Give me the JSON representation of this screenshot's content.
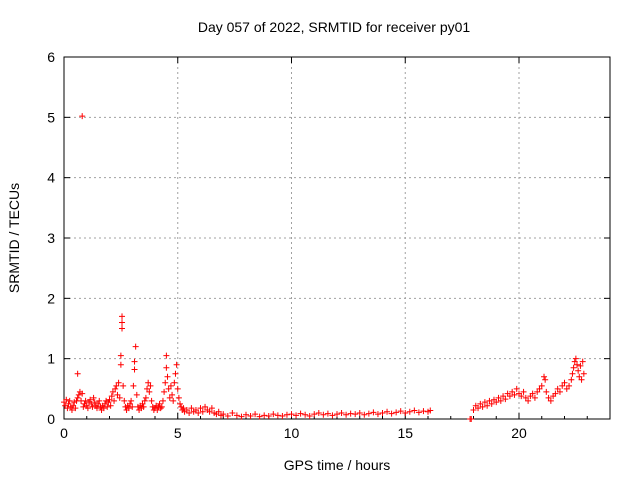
{
  "chart_data": {
    "type": "scatter",
    "title": "Day 057 of 2022, SRMTID for receiver py01",
    "xlabel": "GPS time / hours",
    "ylabel": "SRMTID / TECUs",
    "xlim": [
      0,
      24
    ],
    "ylim": [
      0,
      6
    ],
    "xticks": [
      0,
      5,
      10,
      15,
      20
    ],
    "yticks": [
      0,
      1,
      2,
      3,
      4,
      5,
      6
    ],
    "grid": true,
    "marker": "+",
    "color": "#ff0000",
    "series": [
      {
        "name": "SRMTID",
        "points": [
          [
            0.0,
            0.28
          ],
          [
            0.05,
            0.22
          ],
          [
            0.1,
            0.32
          ],
          [
            0.15,
            0.18
          ],
          [
            0.2,
            0.25
          ],
          [
            0.25,
            0.3
          ],
          [
            0.3,
            0.2
          ],
          [
            0.35,
            0.15
          ],
          [
            0.4,
            0.22
          ],
          [
            0.45,
            0.28
          ],
          [
            0.5,
            0.18
          ],
          [
            0.55,
            0.3
          ],
          [
            0.6,
            0.35
          ],
          [
            0.6,
            0.75
          ],
          [
            0.65,
            0.4
          ],
          [
            0.7,
            0.45
          ],
          [
            0.75,
            0.3
          ],
          [
            0.8,
            0.42
          ],
          [
            0.8,
            5.02
          ],
          [
            0.85,
            0.2
          ],
          [
            0.9,
            0.25
          ],
          [
            0.95,
            0.3
          ],
          [
            1.0,
            0.22
          ],
          [
            1.05,
            0.18
          ],
          [
            1.1,
            0.28
          ],
          [
            1.15,
            0.32
          ],
          [
            1.2,
            0.25
          ],
          [
            1.25,
            0.2
          ],
          [
            1.3,
            0.35
          ],
          [
            1.35,
            0.28
          ],
          [
            1.4,
            0.22
          ],
          [
            1.45,
            0.18
          ],
          [
            1.5,
            0.25
          ],
          [
            1.55,
            0.3
          ],
          [
            1.6,
            0.2
          ],
          [
            1.65,
            0.15
          ],
          [
            1.7,
            0.22
          ],
          [
            1.75,
            0.18
          ],
          [
            1.8,
            0.25
          ],
          [
            1.85,
            0.3
          ],
          [
            1.9,
            0.2
          ],
          [
            1.95,
            0.28
          ],
          [
            2.0,
            0.32
          ],
          [
            2.05,
            0.22
          ],
          [
            2.1,
            0.38
          ],
          [
            2.15,
            0.45
          ],
          [
            2.2,
            0.3
          ],
          [
            2.25,
            0.5
          ],
          [
            2.3,
            0.55
          ],
          [
            2.35,
            0.4
          ],
          [
            2.4,
            0.6
          ],
          [
            2.45,
            0.35
          ],
          [
            2.5,
            0.9
          ],
          [
            2.5,
            1.05
          ],
          [
            2.55,
            1.5
          ],
          [
            2.55,
            1.6
          ],
          [
            2.55,
            1.7
          ],
          [
            2.6,
            0.55
          ],
          [
            2.65,
            0.3
          ],
          [
            2.7,
            0.2
          ],
          [
            2.75,
            0.15
          ],
          [
            2.8,
            0.22
          ],
          [
            2.85,
            0.18
          ],
          [
            2.9,
            0.25
          ],
          [
            2.95,
            0.3
          ],
          [
            3.0,
            0.2
          ],
          [
            3.05,
            0.55
          ],
          [
            3.1,
            0.82
          ],
          [
            3.1,
            0.95
          ],
          [
            3.15,
            1.2
          ],
          [
            3.2,
            0.4
          ],
          [
            3.25,
            0.2
          ],
          [
            3.3,
            0.15
          ],
          [
            3.35,
            0.22
          ],
          [
            3.4,
            0.18
          ],
          [
            3.45,
            0.25
          ],
          [
            3.5,
            0.2
          ],
          [
            3.55,
            0.3
          ],
          [
            3.6,
            0.35
          ],
          [
            3.65,
            0.5
          ],
          [
            3.7,
            0.6
          ],
          [
            3.75,
            0.45
          ],
          [
            3.8,
            0.55
          ],
          [
            3.85,
            0.3
          ],
          [
            3.9,
            0.2
          ],
          [
            3.95,
            0.15
          ],
          [
            4.0,
            0.18
          ],
          [
            4.05,
            0.22
          ],
          [
            4.1,
            0.15
          ],
          [
            4.15,
            0.2
          ],
          [
            4.2,
            0.25
          ],
          [
            4.25,
            0.18
          ],
          [
            4.3,
            0.2
          ],
          [
            4.35,
            0.3
          ],
          [
            4.4,
            0.45
          ],
          [
            4.45,
            0.6
          ],
          [
            4.5,
            1.05
          ],
          [
            4.5,
            0.85
          ],
          [
            4.55,
            0.7
          ],
          [
            4.6,
            0.5
          ],
          [
            4.65,
            0.35
          ],
          [
            4.7,
            0.55
          ],
          [
            4.75,
            0.4
          ],
          [
            4.8,
            0.3
          ],
          [
            4.85,
            0.6
          ],
          [
            4.9,
            0.75
          ],
          [
            4.95,
            0.9
          ],
          [
            5.0,
            0.5
          ],
          [
            5.05,
            0.35
          ],
          [
            5.1,
            0.25
          ],
          [
            5.15,
            0.2
          ],
          [
            5.2,
            0.15
          ],
          [
            5.25,
            0.18
          ],
          [
            5.3,
            0.12
          ],
          [
            5.4,
            0.15
          ],
          [
            5.5,
            0.1
          ],
          [
            5.6,
            0.18
          ],
          [
            5.7,
            0.12
          ],
          [
            5.8,
            0.15
          ],
          [
            5.9,
            0.1
          ],
          [
            6.0,
            0.18
          ],
          [
            6.1,
            0.12
          ],
          [
            6.2,
            0.2
          ],
          [
            6.3,
            0.15
          ],
          [
            6.4,
            0.12
          ],
          [
            6.5,
            0.18
          ],
          [
            6.6,
            0.1
          ],
          [
            6.7,
            0.08
          ],
          [
            6.8,
            0.12
          ],
          [
            6.9,
            0.06
          ],
          [
            7.0,
            0.08
          ],
          [
            7.2,
            0.05
          ],
          [
            7.4,
            0.1
          ],
          [
            7.6,
            0.06
          ],
          [
            7.8,
            0.04
          ],
          [
            8.0,
            0.07
          ],
          [
            8.2,
            0.05
          ],
          [
            8.4,
            0.08
          ],
          [
            8.6,
            0.04
          ],
          [
            8.8,
            0.06
          ],
          [
            9.0,
            0.05
          ],
          [
            9.2,
            0.08
          ],
          [
            9.4,
            0.06
          ],
          [
            9.6,
            0.05
          ],
          [
            9.8,
            0.07
          ],
          [
            10.0,
            0.08
          ],
          [
            10.2,
            0.06
          ],
          [
            10.4,
            0.09
          ],
          [
            10.6,
            0.07
          ],
          [
            10.8,
            0.05
          ],
          [
            11.0,
            0.08
          ],
          [
            11.2,
            0.1
          ],
          [
            11.4,
            0.07
          ],
          [
            11.6,
            0.09
          ],
          [
            11.8,
            0.06
          ],
          [
            12.0,
            0.08
          ],
          [
            12.2,
            0.1
          ],
          [
            12.4,
            0.07
          ],
          [
            12.6,
            0.09
          ],
          [
            12.8,
            0.08
          ],
          [
            13.0,
            0.1
          ],
          [
            13.2,
            0.07
          ],
          [
            13.4,
            0.09
          ],
          [
            13.6,
            0.11
          ],
          [
            13.8,
            0.08
          ],
          [
            14.0,
            0.1
          ],
          [
            14.2,
            0.12
          ],
          [
            14.4,
            0.09
          ],
          [
            14.6,
            0.11
          ],
          [
            14.8,
            0.13
          ],
          [
            15.0,
            0.1
          ],
          [
            15.2,
            0.12
          ],
          [
            15.4,
            0.14
          ],
          [
            15.6,
            0.11
          ],
          [
            15.8,
            0.13
          ],
          [
            16.0,
            0.12
          ],
          [
            16.1,
            0.14
          ],
          [
            17.85,
            0.0
          ],
          [
            17.9,
            0.0
          ],
          [
            18.0,
            0.15
          ],
          [
            18.1,
            0.22
          ],
          [
            18.2,
            0.18
          ],
          [
            18.3,
            0.25
          ],
          [
            18.4,
            0.2
          ],
          [
            18.5,
            0.28
          ],
          [
            18.6,
            0.22
          ],
          [
            18.7,
            0.3
          ],
          [
            18.8,
            0.25
          ],
          [
            18.9,
            0.32
          ],
          [
            19.0,
            0.28
          ],
          [
            19.1,
            0.35
          ],
          [
            19.2,
            0.3
          ],
          [
            19.3,
            0.38
          ],
          [
            19.4,
            0.33
          ],
          [
            19.5,
            0.42
          ],
          [
            19.6,
            0.38
          ],
          [
            19.7,
            0.45
          ],
          [
            19.8,
            0.4
          ],
          [
            19.9,
            0.5
          ],
          [
            20.0,
            0.42
          ],
          [
            20.1,
            0.38
          ],
          [
            20.2,
            0.45
          ],
          [
            20.3,
            0.35
          ],
          [
            20.4,
            0.3
          ],
          [
            20.5,
            0.38
          ],
          [
            20.6,
            0.42
          ],
          [
            20.7,
            0.35
          ],
          [
            20.8,
            0.45
          ],
          [
            20.9,
            0.5
          ],
          [
            21.0,
            0.55
          ],
          [
            21.1,
            0.7
          ],
          [
            21.15,
            0.65
          ],
          [
            21.2,
            0.45
          ],
          [
            21.3,
            0.35
          ],
          [
            21.4,
            0.3
          ],
          [
            21.5,
            0.38
          ],
          [
            21.6,
            0.42
          ],
          [
            21.7,
            0.5
          ],
          [
            21.8,
            0.45
          ],
          [
            21.9,
            0.55
          ],
          [
            22.0,
            0.6
          ],
          [
            22.1,
            0.5
          ],
          [
            22.2,
            0.55
          ],
          [
            22.3,
            0.65
          ],
          [
            22.35,
            0.75
          ],
          [
            22.4,
            0.85
          ],
          [
            22.45,
            0.95
          ],
          [
            22.5,
            1.0
          ],
          [
            22.55,
            0.9
          ],
          [
            22.6,
            0.8
          ],
          [
            22.65,
            0.7
          ],
          [
            22.7,
            0.88
          ],
          [
            22.75,
            0.65
          ],
          [
            22.8,
            0.95
          ],
          [
            22.85,
            0.75
          ]
        ]
      }
    ]
  }
}
